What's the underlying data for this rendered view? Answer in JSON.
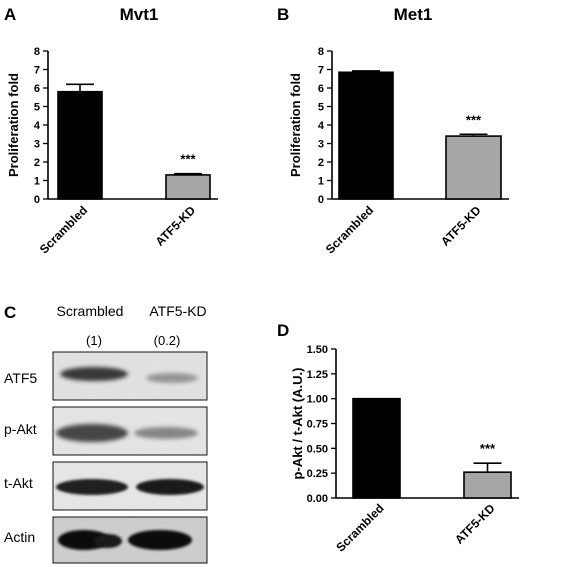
{
  "panels": {
    "A": "A",
    "B": "B",
    "C": "C",
    "D": "D"
  },
  "chart_data": [
    {
      "panel": "A",
      "type": "bar",
      "title": "Mvt1",
      "ylabel": "Proliferation fold",
      "xlabel": "",
      "categories": [
        "Scrambled",
        "ATF5-KD"
      ],
      "values": [
        5.8,
        1.3
      ],
      "errors": [
        0.4,
        0.07
      ],
      "significance": [
        "",
        "***"
      ],
      "ylim": [
        0,
        8
      ],
      "yticks": [
        "0",
        "1",
        "2",
        "3",
        "4",
        "5",
        "6",
        "7",
        "8"
      ],
      "bar_colors": [
        "#000000",
        "#a6a6a6"
      ]
    },
    {
      "panel": "B",
      "type": "bar",
      "title": "Met1",
      "ylabel": "Proliferation fold",
      "xlabel": "",
      "categories": [
        "Scrambled",
        "ATF5-KD"
      ],
      "values": [
        6.85,
        3.4
      ],
      "errors": [
        0.07,
        0.1
      ],
      "significance": [
        "",
        "***"
      ],
      "ylim": [
        0,
        8
      ],
      "yticks": [
        "0",
        "1",
        "2",
        "3",
        "4",
        "5",
        "6",
        "7",
        "8"
      ],
      "bar_colors": [
        "#000000",
        "#a6a6a6"
      ]
    },
    {
      "panel": "D",
      "type": "bar",
      "title": "",
      "ylabel": "p-Akt / t-Akt (A.U.)",
      "xlabel": "",
      "categories": [
        "Scrambled",
        "ATF5-KD"
      ],
      "values": [
        1.0,
        0.26
      ],
      "errors": [
        0.0,
        0.09
      ],
      "significance": [
        "",
        "***"
      ],
      "ylim": [
        0,
        1.5
      ],
      "yticks": [
        "0.00",
        "0.25",
        "0.50",
        "0.75",
        "1.00",
        "1.25",
        "1.50"
      ],
      "bar_colors": [
        "#000000",
        "#a6a6a6"
      ]
    }
  ],
  "blot": {
    "columns": [
      "Scrambled",
      "ATF5-KD"
    ],
    "ratios": [
      "(1)",
      "(0.2)"
    ],
    "rows": [
      "ATF5",
      "p-Akt",
      "t-Akt",
      "Actin"
    ]
  }
}
